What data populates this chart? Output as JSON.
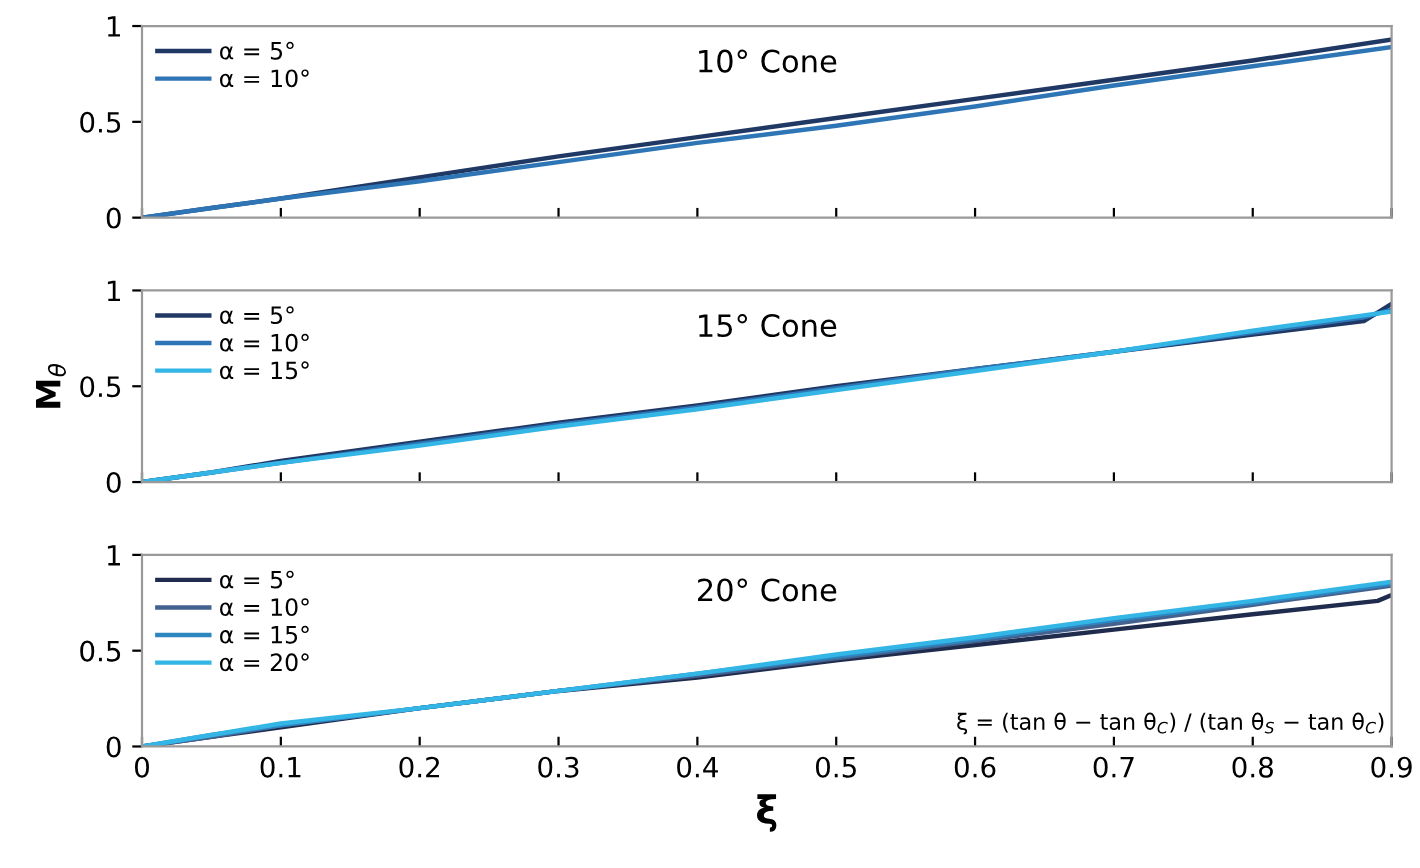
{
  "chart_data": [
    {
      "type": "line",
      "title": "10° Cone",
      "x": [
        0,
        0.05,
        0.1,
        0.2,
        0.3,
        0.4,
        0.5,
        0.6,
        0.7,
        0.8,
        0.9
      ],
      "xlim": [
        0,
        0.9
      ],
      "xticks": [
        0,
        0.1,
        0.2,
        0.3,
        0.4,
        0.5,
        0.6,
        0.7,
        0.8,
        0.9
      ],
      "ylim": [
        0,
        1
      ],
      "yticks": [
        0,
        0.5,
        1
      ],
      "tick_labels": "y",
      "legend": "top left",
      "grid": false,
      "series": [
        {
          "name": "α = 5°",
          "color": "#1f3864",
          "values": [
            0,
            0.05,
            0.1,
            0.21,
            0.32,
            0.42,
            0.52,
            0.62,
            0.72,
            0.82,
            0.93
          ]
        },
        {
          "name": "α = 10°",
          "color": "#2e75b6",
          "values": [
            0,
            0.05,
            0.1,
            0.19,
            0.29,
            0.39,
            0.48,
            0.58,
            0.69,
            0.79,
            0.89
          ]
        }
      ]
    },
    {
      "type": "line",
      "title": "15° Cone",
      "ylabel": "M$_{θ}$",
      "x": [
        0,
        0.05,
        0.1,
        0.2,
        0.3,
        0.4,
        0.5,
        0.6,
        0.7,
        0.8,
        0.88,
        0.9
      ],
      "xlim": [
        0,
        0.9
      ],
      "xticks": [
        0,
        0.1,
        0.2,
        0.3,
        0.4,
        0.5,
        0.6,
        0.7,
        0.8,
        0.9
      ],
      "ylim": [
        0,
        1
      ],
      "yticks": [
        0,
        0.5,
        1
      ],
      "tick_labels": "y",
      "legend": "top left",
      "grid": false,
      "series": [
        {
          "name": "α = 5°",
          "color": "#1f3864",
          "values": [
            0,
            0.05,
            0.11,
            0.21,
            0.31,
            0.4,
            0.5,
            0.59,
            0.68,
            0.77,
            0.84,
            0.93
          ]
        },
        {
          "name": "α = 10°",
          "color": "#2e75b6",
          "values": [
            0,
            0.05,
            0.1,
            0.2,
            0.3,
            0.39,
            0.49,
            0.59,
            0.68,
            0.78,
            0.86,
            0.9
          ]
        },
        {
          "name": "α = 15°",
          "color": "#33b5e5",
          "values": [
            0,
            0.05,
            0.1,
            0.19,
            0.29,
            0.38,
            0.48,
            0.58,
            0.68,
            0.79,
            0.87,
            0.89
          ]
        }
      ]
    },
    {
      "type": "line",
      "title": "20° Cone",
      "xlabel": "ξ",
      "x": [
        0,
        0.05,
        0.1,
        0.2,
        0.3,
        0.4,
        0.5,
        0.6,
        0.7,
        0.8,
        0.89,
        0.9
      ],
      "xlim": [
        0,
        0.9
      ],
      "xticks": [
        0,
        0.1,
        0.2,
        0.3,
        0.4,
        0.5,
        0.6,
        0.7,
        0.8,
        0.9
      ],
      "ylim": [
        0,
        1
      ],
      "yticks": [
        0,
        0.5,
        1
      ],
      "legend": "top left",
      "grid": false,
      "annotations": [
        "ξ = (tan θ − tan θ$_{C}$) / (tan θ$_{S}$ − tan θ$_{C}$)"
      ],
      "series": [
        {
          "name": "α = 5°",
          "color": "#202c4e",
          "values": [
            0,
            0.05,
            0.1,
            0.2,
            0.29,
            0.36,
            0.45,
            0.53,
            0.61,
            0.69,
            0.76,
            0.79
          ]
        },
        {
          "name": "α = 10°",
          "color": "#44628f",
          "values": [
            0,
            0.05,
            0.11,
            0.2,
            0.29,
            0.37,
            0.46,
            0.55,
            0.64,
            0.74,
            0.83,
            0.84
          ]
        },
        {
          "name": "α = 15°",
          "color": "#2e86c1",
          "values": [
            0,
            0.06,
            0.11,
            0.2,
            0.29,
            0.38,
            0.47,
            0.56,
            0.66,
            0.75,
            0.84,
            0.85
          ]
        },
        {
          "name": "α = 20°",
          "color": "#33b5e5",
          "values": [
            0,
            0.06,
            0.12,
            0.2,
            0.29,
            0.38,
            0.48,
            0.57,
            0.67,
            0.76,
            0.85,
            0.86
          ]
        }
      ]
    }
  ]
}
